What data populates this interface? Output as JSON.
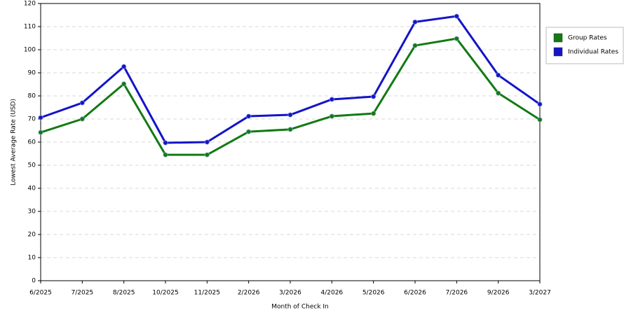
{
  "chart_data": {
    "type": "line",
    "x_label": "Month of Check In",
    "y_label": "Lowest Average Rate (USD)",
    "categories": [
      "6/2025",
      "7/2025",
      "8/2025",
      "10/2025",
      "11/2025",
      "2/2026",
      "3/2026",
      "4/2026",
      "5/2026",
      "6/2026",
      "7/2026",
      "9/2026",
      "3/2027"
    ],
    "series": [
      {
        "name": "Group Rates",
        "color": "#127a12",
        "values": [
          64.2,
          70,
          85.2,
          54.5,
          54.5,
          64.5,
          65.5,
          71.2,
          72.4,
          101.8,
          104.8,
          81.2,
          69.7
        ]
      },
      {
        "name": "Individual Rates",
        "color": "#1414c8",
        "values": [
          70.6,
          77,
          92.7,
          59.7,
          60,
          71.2,
          71.8,
          78.5,
          79.7,
          112,
          114.5,
          89,
          76.4
        ]
      }
    ],
    "ylim": [
      0,
      120
    ],
    "yticks": [
      0,
      10,
      20,
      30,
      40,
      50,
      60,
      70,
      80,
      90,
      100,
      110,
      120
    ],
    "grid": true,
    "legend": "right"
  }
}
